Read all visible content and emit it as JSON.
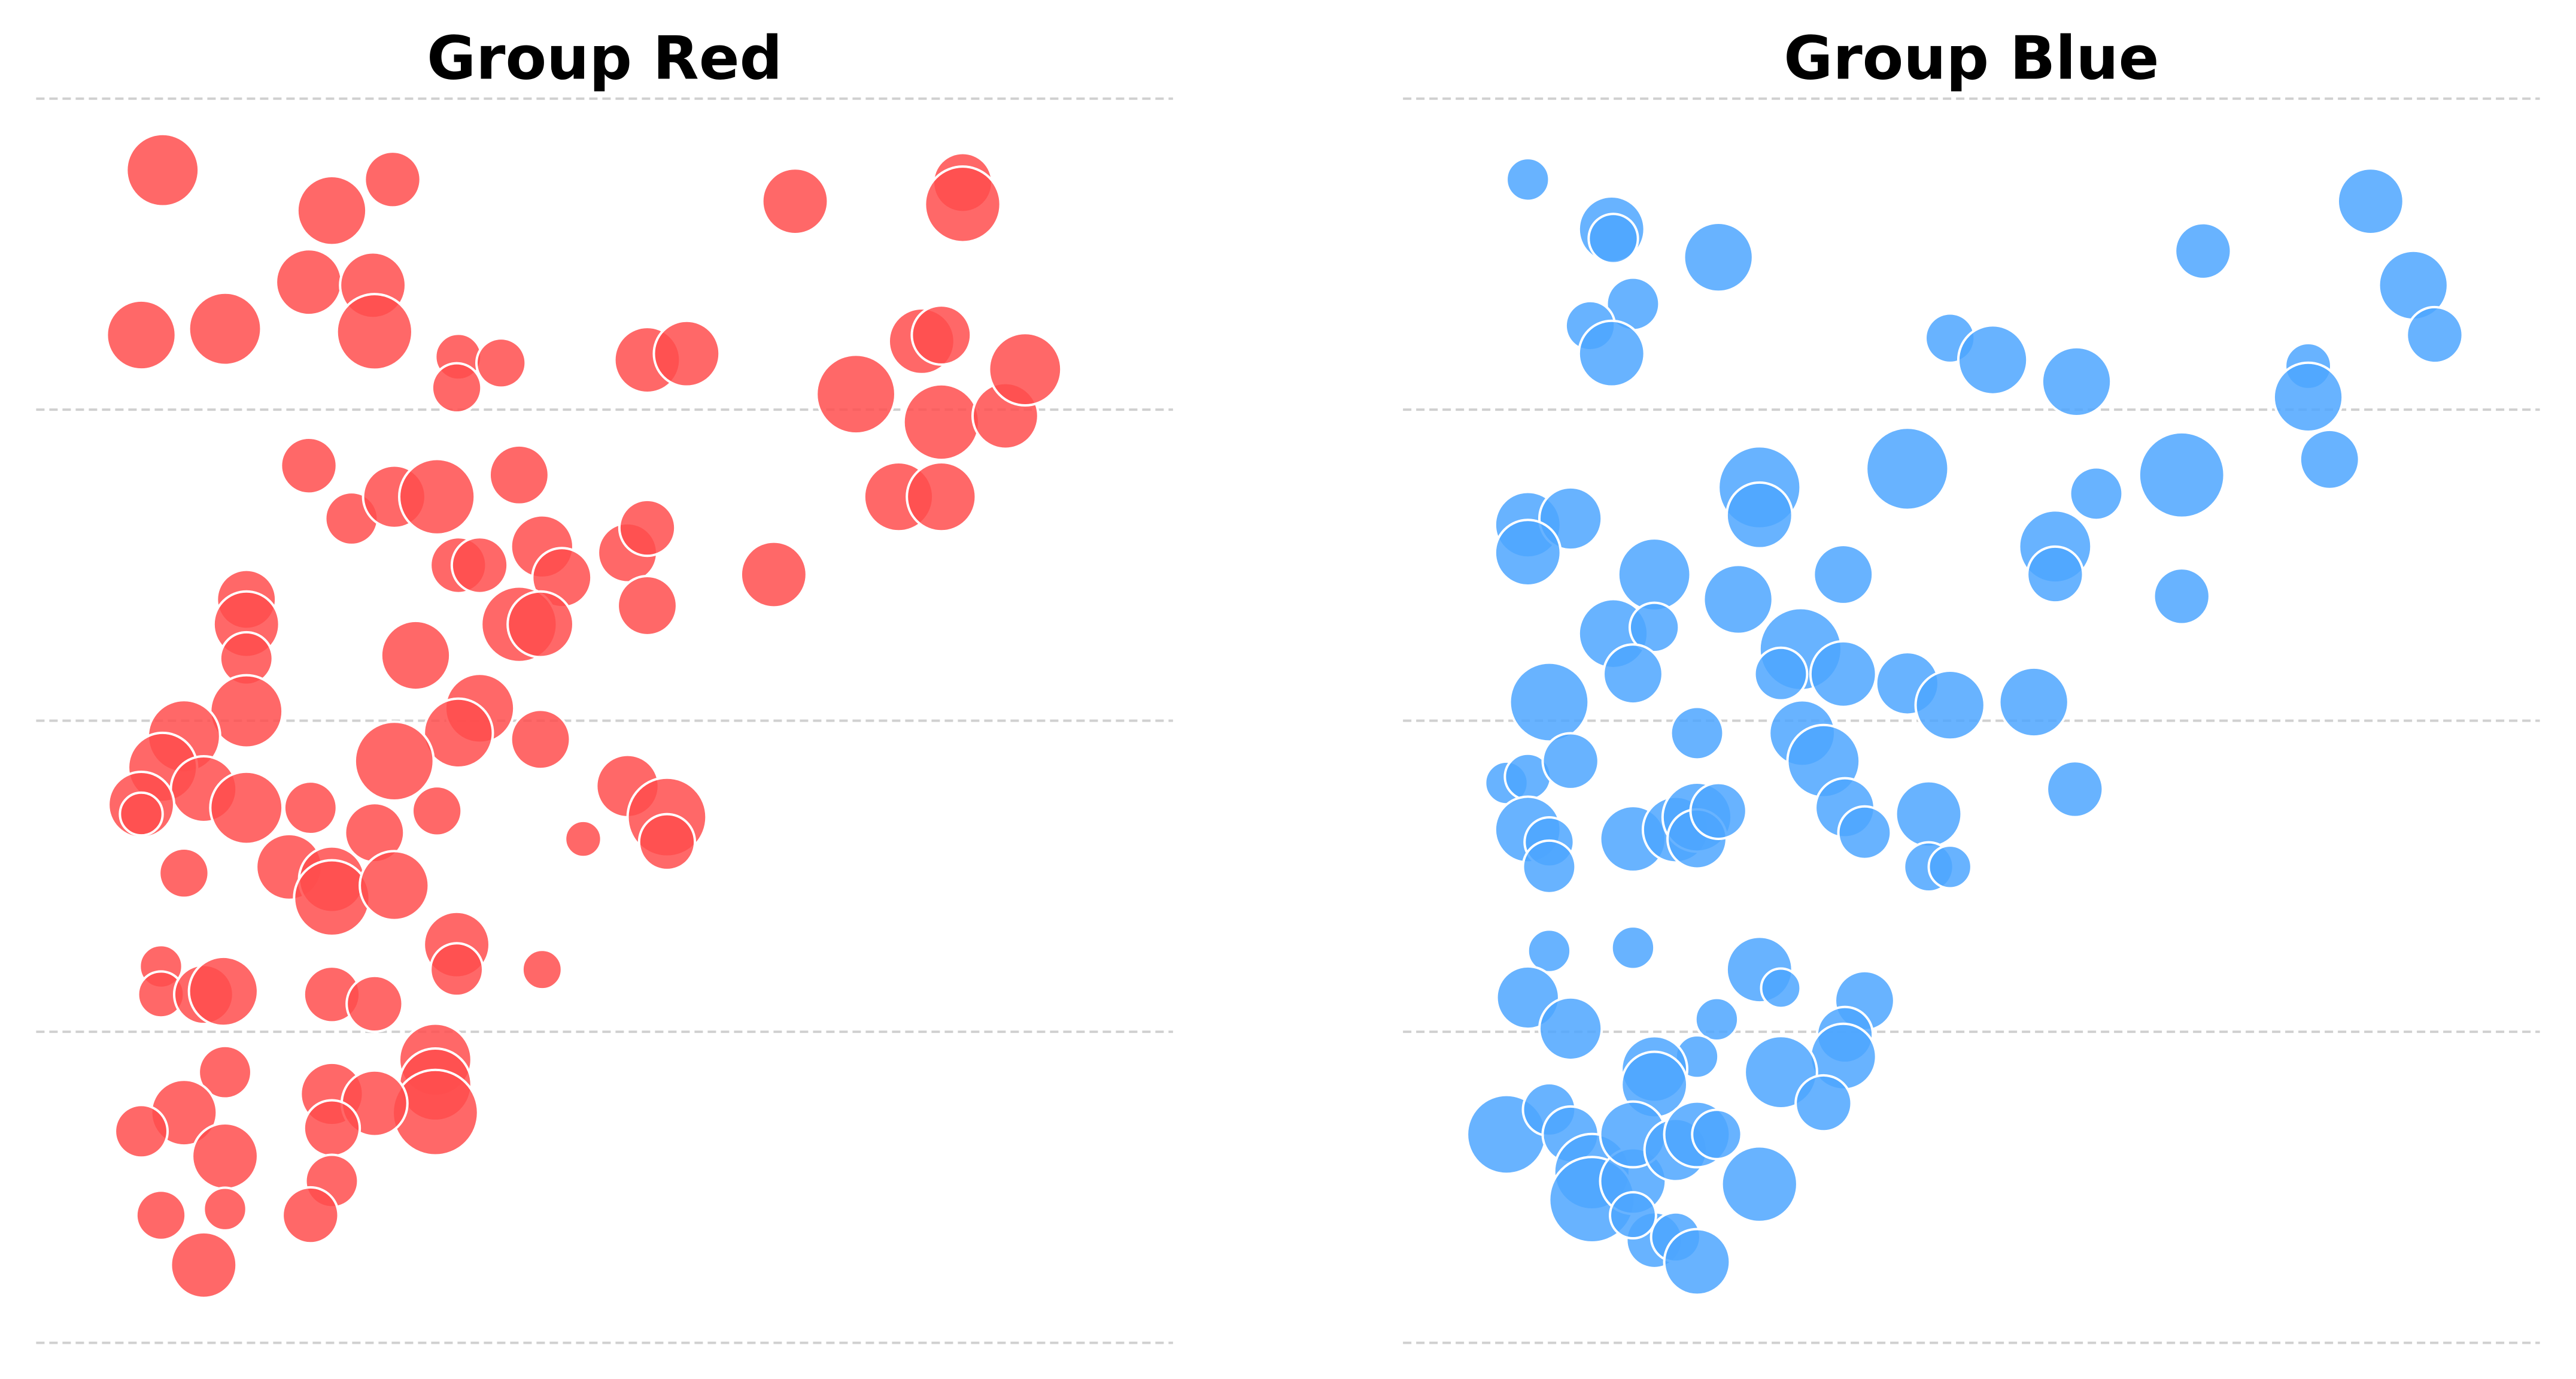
{
  "chart_data": [
    {
      "type": "bubble",
      "title": "Group Red",
      "color": "#ff4d4d",
      "xlim": [
        0,
        692
      ],
      "ylim": [
        0,
        400
      ],
      "yticks": [
        0,
        100,
        200,
        300,
        400
      ],
      "grid": true,
      "x": [
        77,
        180,
        217,
        462,
        564,
        564,
        64,
        115,
        166,
        205,
        206,
        257,
        283,
        256,
        372,
        396,
        539,
        551,
        499,
        551,
        590,
        602,
        525,
        551,
        166,
        192,
        218,
        244,
        294,
        257,
        270,
        308,
        320,
        294,
        307,
        360,
        372,
        372,
        449,
        128,
        128,
        128,
        128,
        231,
        270,
        257,
        307,
        90,
        77,
        102,
        64,
        64,
        128,
        218,
        167,
        206,
        244,
        360,
        384,
        384,
        333,
        90,
        154,
        180,
        180,
        218,
        256,
        256,
        308,
        76,
        76,
        102,
        114,
        180,
        206,
        115,
        243,
        243,
        243,
        90,
        64,
        180,
        206,
        180,
        115,
        180,
        167,
        76,
        115,
        102
      ],
      "y": [
        377,
        364,
        374,
        367,
        373,
        366,
        324,
        326,
        341,
        340,
        325,
        317,
        315,
        307,
        316,
        318,
        322,
        324,
        305,
        296,
        298,
        313,
        272,
        272,
        282,
        265,
        272,
        272,
        279,
        250,
        250,
        256,
        246,
        231,
        231,
        254,
        262,
        237,
        247,
        239,
        231,
        220,
        203,
        221,
        204,
        196,
        194,
        195,
        185,
        178,
        173,
        170,
        172,
        187,
        172,
        164,
        171,
        179,
        169,
        161,
        162,
        151,
        153,
        149,
        143,
        147,
        128,
        120,
        120,
        121,
        112,
        112,
        113,
        112,
        109,
        87,
        91,
        83,
        74,
        74,
        68,
        80,
        77,
        69,
        60,
        52,
        41,
        41,
        43,
        25
      ],
      "sizes": [
        22,
        21,
        17,
        20,
        18,
        23,
        21,
        22,
        20,
        20,
        23,
        14,
        15,
        15,
        20,
        20,
        20,
        18,
        24,
        23,
        20,
        22,
        21,
        21,
        17,
        16,
        19,
        23,
        18,
        17,
        17,
        19,
        18,
        23,
        20,
        18,
        17,
        18,
        20,
        18,
        20,
        16,
        22,
        21,
        21,
        21,
        18,
        22,
        21,
        20,
        20,
        13,
        22,
        24,
        16,
        18,
        15,
        19,
        24,
        17,
        11,
        15,
        20,
        20,
        23,
        21,
        20,
        16,
        12,
        13,
        14,
        18,
        21,
        17,
        17,
        16,
        22,
        22,
        26,
        20,
        16,
        19,
        20,
        17,
        20,
        16,
        17,
        15,
        13,
        20
      ]
    },
    {
      "type": "bubble",
      "title": "Group Blue",
      "color": "#4da6ff",
      "xlim": [
        0,
        692
      ],
      "ylim": [
        0,
        400
      ],
      "yticks": [
        0,
        100,
        200,
        300,
        400
      ],
      "grid": true,
      "x": [
        76,
        127,
        128,
        192,
        487,
        589,
        615,
        628,
        140,
        114,
        127,
        333,
        359,
        410,
        551,
        551,
        564,
        217,
        217,
        307,
        474,
        422,
        76,
        102,
        76,
        397,
        397,
        474,
        153,
        204,
        268,
        128,
        153,
        140,
        242,
        230,
        268,
        307,
        333,
        384,
        89,
        179,
        243,
        256,
        63,
        76,
        102,
        409,
        269,
        281,
        320,
        320,
        333,
        76,
        89,
        89,
        140,
        166,
        179,
        179,
        192,
        89,
        140,
        217,
        230,
        281,
        76,
        102,
        191,
        269,
        268,
        230,
        256,
        179,
        153,
        153,
        63,
        89,
        102,
        115,
        115,
        140,
        140,
        166,
        179,
        191,
        217,
        153,
        166,
        179,
        140
      ],
      "y": [
        374,
        358,
        355,
        349,
        351,
        367,
        340,
        324,
        334,
        327,
        318,
        323,
        316,
        309,
        314,
        304,
        284,
        275,
        266,
        281,
        279,
        273,
        263,
        265,
        254,
        256,
        247,
        240,
        247,
        239,
        247,
        228,
        230,
        215,
        223,
        215,
        215,
        212,
        205,
        206,
        206,
        196,
        196,
        187,
        180,
        182,
        187,
        178,
        172,
        164,
        170,
        153,
        153,
        165,
        161,
        153,
        162,
        165,
        169,
        162,
        171,
        126,
        127,
        120,
        114,
        110,
        111,
        101,
        104,
        99,
        92,
        87,
        77,
        92,
        88,
        83,
        67,
        75,
        67,
        55,
        46,
        52,
        67,
        62,
        67,
        67,
        51,
        33,
        34,
        26,
        41
      ],
      "sizes": [
        13,
        20,
        15,
        21,
        17,
        20,
        21,
        17,
        16,
        15,
        20,
        15,
        21,
        21,
        14,
        21,
        18,
        25,
        20,
        25,
        26,
        16,
        20,
        19,
        20,
        22,
        17,
        17,
        22,
        21,
        18,
        21,
        15,
        18,
        25,
        16,
        20,
        19,
        21,
        21,
        24,
        16,
        20,
        22,
        13,
        14,
        17,
        17,
        18,
        16,
        20,
        15,
        13,
        20,
        15,
        16,
        20,
        20,
        21,
        18,
        17,
        13,
        13,
        20,
        12,
        18,
        19,
        19,
        13,
        17,
        20,
        22,
        17,
        13,
        20,
        20,
        24,
        16,
        17,
        23,
        26,
        20,
        20,
        19,
        20,
        15,
        23,
        17,
        15,
        20,
        14
      ]
    }
  ]
}
